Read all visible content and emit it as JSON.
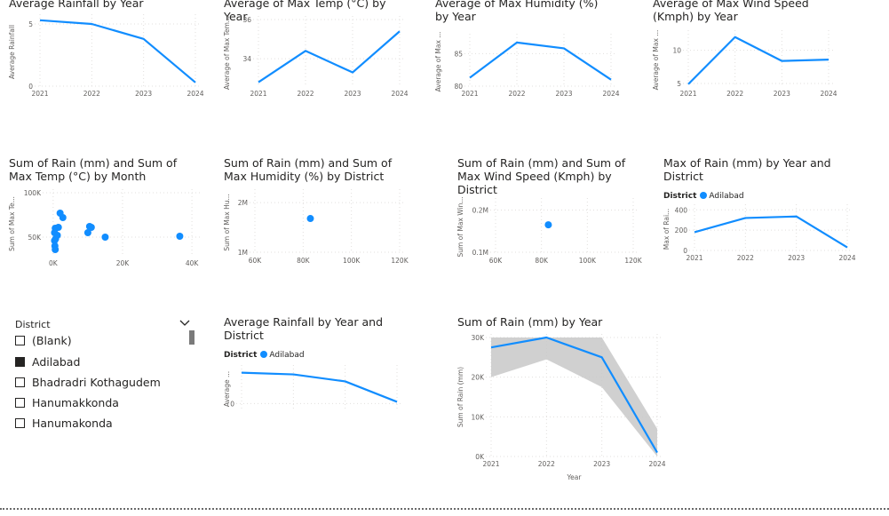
{
  "colors": {
    "series": "#118DFF",
    "band": "#C8C8C8",
    "grid": "#E1DFDD",
    "text": "#605E5C"
  },
  "slicer": {
    "title": "District",
    "items": [
      {
        "label": "(Blank)",
        "checked": false
      },
      {
        "label": "Adilabad",
        "checked": true
      },
      {
        "label": "Bhadradri Kothagudem",
        "checked": false
      },
      {
        "label": "Hanumakkonda",
        "checked": false
      },
      {
        "label": "Hanumakonda",
        "checked": false
      }
    ]
  },
  "chart_data": [
    {
      "id": "avg-rainfall-year",
      "type": "line",
      "title": "Average Rainfall by Year",
      "xlabel": "",
      "ylabel": "Average Rainfall",
      "categories": [
        "2021",
        "2022",
        "2023",
        "2024"
      ],
      "values": [
        5.3,
        5.0,
        3.8,
        0.3
      ],
      "ylim": [
        0,
        5.5
      ],
      "yticks": [
        0,
        5
      ]
    },
    {
      "id": "avg-max-temp-year",
      "type": "line",
      "title": "Average of Max Temp (°C) by Year",
      "xlabel": "",
      "ylabel": "Average of Max Tem...",
      "categories": [
        "2021",
        "2022",
        "2023",
        "2024"
      ],
      "values": [
        32.8,
        34.4,
        33.3,
        35.4
      ],
      "ylim": [
        32.6,
        36
      ],
      "yticks": [
        34,
        36
      ]
    },
    {
      "id": "avg-max-humidity-year",
      "type": "line",
      "title": "Average of Max Humidity (%) by Year",
      "xlabel": "",
      "ylabel": "Average of Max ...",
      "categories": [
        "2021",
        "2022",
        "2023",
        "2024"
      ],
      "values": [
        81.3,
        86.7,
        85.8,
        81.0
      ],
      "ylim": [
        80,
        87.5
      ],
      "yticks": [
        80,
        85
      ]
    },
    {
      "id": "avg-max-wind-year",
      "type": "line",
      "title": "Average of Max Wind Speed (Kmph) by Year",
      "xlabel": "",
      "ylabel": "Average of Max ...",
      "categories": [
        "2021",
        "2022",
        "2023",
        "2024"
      ],
      "values": [
        4.9,
        12.0,
        8.4,
        8.6
      ],
      "ylim": [
        4.6,
        12.5
      ],
      "yticks": [
        5,
        10
      ]
    },
    {
      "id": "rain-vs-temp-month",
      "type": "scatter",
      "title": "Sum of Rain (mm) and Sum of Max Temp (°C) by Month",
      "xlabel": "",
      "ylabel": "Sum of Max Te...",
      "points": [
        [
          400,
          46000
        ],
        [
          500,
          40000
        ],
        [
          600,
          36000
        ],
        [
          700,
          48000
        ],
        [
          400,
          55000
        ],
        [
          600,
          60000
        ],
        [
          1200,
          52000
        ],
        [
          1500,
          61000
        ],
        [
          2000,
          77000
        ],
        [
          2800,
          72000
        ],
        [
          10000,
          55000
        ],
        [
          10500,
          62000
        ],
        [
          11000,
          61000
        ],
        [
          15000,
          50000
        ],
        [
          36500,
          51000
        ]
      ],
      "xticks": [
        0,
        20000,
        40000
      ],
      "xtick_labels": [
        "0K",
        "20K",
        "40K"
      ],
      "xlim": [
        -1500,
        41000
      ],
      "yticks": [
        50000,
        100000
      ],
      "ytick_labels": [
        "50K",
        "100K"
      ],
      "ylim": [
        30000,
        100000
      ]
    },
    {
      "id": "rain-vs-humidity-district",
      "type": "scatter",
      "title": "Sum of Rain (mm) and Sum of Max Humidity (%) by District",
      "xlabel": "",
      "ylabel": "Sum of Max Hu...",
      "points": [
        [
          83000,
          1680000
        ]
      ],
      "xticks": [
        60000,
        80000,
        100000,
        120000
      ],
      "xtick_labels": [
        "60K",
        "80K",
        "100K",
        "120K"
      ],
      "xlim": [
        60000,
        120000
      ],
      "yticks": [
        1000000,
        2000000
      ],
      "ytick_labels": [
        "1M",
        "2M"
      ],
      "ylim": [
        1000000,
        2200000
      ]
    },
    {
      "id": "rain-vs-wind-district",
      "type": "scatter",
      "title": "Sum of Rain (mm) and Sum of Max Wind Speed (Kmph) by District",
      "xlabel": "",
      "ylabel": "Sum of Max Win...",
      "points": [
        [
          83000,
          165000
        ]
      ],
      "xticks": [
        60000,
        80000,
        100000,
        120000
      ],
      "xtick_labels": [
        "60K",
        "80K",
        "100K",
        "120K"
      ],
      "xlim": [
        60000,
        120000
      ],
      "yticks": [
        100000,
        200000
      ],
      "ytick_labels": [
        "0.1M",
        "0.2M"
      ],
      "ylim": [
        100000,
        220000
      ]
    },
    {
      "id": "max-rain-year-district",
      "type": "line",
      "title": "Max of Rain (mm) by Year and District",
      "xlabel": "",
      "ylabel": "Max of Rai...",
      "legend_title": "District",
      "legend_items": [
        "Adilabad"
      ],
      "categories": [
        "2021",
        "2022",
        "2023",
        "2024"
      ],
      "values": [
        180,
        320,
        335,
        30
      ],
      "ylim": [
        0,
        420
      ],
      "yticks": [
        0,
        200,
        400
      ]
    },
    {
      "id": "avg-rainfall-year-district",
      "type": "line",
      "title": "Average Rainfall by Year and District",
      "xlabel": "",
      "ylabel": "Average ...",
      "legend_title": "District",
      "legend_items": [
        "Adilabad"
      ],
      "categories": [
        "2021",
        "2022",
        "2023",
        "2024"
      ],
      "values": [
        5.3,
        5.0,
        3.8,
        0.3
      ],
      "ylim": [
        -1,
        6
      ],
      "yticks": [
        0
      ],
      "show_xticks": false
    },
    {
      "id": "sum-rain-year",
      "type": "line",
      "title": "Sum of Rain (mm) by Year",
      "xlabel": "Year",
      "ylabel": "Sum of Rain (mm)",
      "categories": [
        "2021",
        "2022",
        "2023",
        "2024"
      ],
      "values": [
        27500,
        30000,
        25000,
        1000
      ],
      "band_upper": [
        30000,
        30000,
        30000,
        7000
      ],
      "band_lower": [
        20000,
        24500,
        17500,
        0
      ],
      "ylim": [
        0,
        30000
      ],
      "yticks": [
        0,
        10000,
        20000,
        30000
      ],
      "ytick_labels": [
        "0K",
        "10K",
        "20K",
        "30K"
      ]
    }
  ]
}
